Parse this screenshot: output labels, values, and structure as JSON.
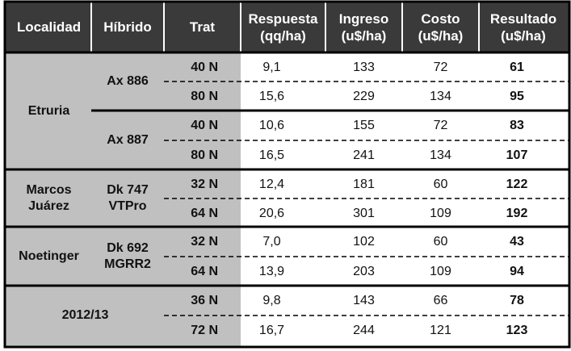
{
  "colors": {
    "header_bg": "#3a3a3a",
    "left_bg": "#c0c0c0",
    "border": "#000000",
    "data_bg": "#ffffff"
  },
  "header": {
    "localidad": "Localidad",
    "hibrido": "Híbrido",
    "trat": "Trat",
    "respuesta": "Respuesta (qq/ha)",
    "ingreso": "Ingreso (u$/ha)",
    "costo": "Costo (u$/ha)",
    "resultado": "Resultado (u$/ha)"
  },
  "groups": [
    {
      "localidad": "Etruria",
      "hibridos": [
        "Ax 886",
        "Ax 887"
      ]
    },
    {
      "localidad": "Marcos Juárez",
      "hibridos": [
        "Dk 747 VTPro"
      ]
    },
    {
      "localidad": "Noetinger",
      "hibridos": [
        "Dk 692 MGRR2"
      ]
    },
    {
      "localidad": "2012/13",
      "hibridos": []
    }
  ],
  "rows": [
    {
      "trat": "40 N",
      "respuesta": "9,1",
      "ingreso": "133",
      "costo": "72",
      "resultado": "61"
    },
    {
      "trat": "80 N",
      "respuesta": "15,6",
      "ingreso": "229",
      "costo": "134",
      "resultado": "95"
    },
    {
      "trat": "40 N",
      "respuesta": "10,6",
      "ingreso": "155",
      "costo": "72",
      "resultado": "83"
    },
    {
      "trat": "80 N",
      "respuesta": "16,5",
      "ingreso": "241",
      "costo": "134",
      "resultado": "107"
    },
    {
      "trat": "32 N",
      "respuesta": "12,4",
      "ingreso": "181",
      "costo": "60",
      "resultado": "122"
    },
    {
      "trat": "64 N",
      "respuesta": "20,6",
      "ingreso": "301",
      "costo": "109",
      "resultado": "192"
    },
    {
      "trat": "32 N",
      "respuesta": "7,0",
      "ingreso": "102",
      "costo": "60",
      "resultado": "43"
    },
    {
      "trat": "64 N",
      "respuesta": "13,9",
      "ingreso": "203",
      "costo": "109",
      "resultado": "94"
    },
    {
      "trat": "36 N",
      "respuesta": "9,8",
      "ingreso": "143",
      "costo": "66",
      "resultado": "78"
    },
    {
      "trat": "72 N",
      "respuesta": "16,7",
      "ingreso": "244",
      "costo": "121",
      "resultado": "123"
    }
  ]
}
